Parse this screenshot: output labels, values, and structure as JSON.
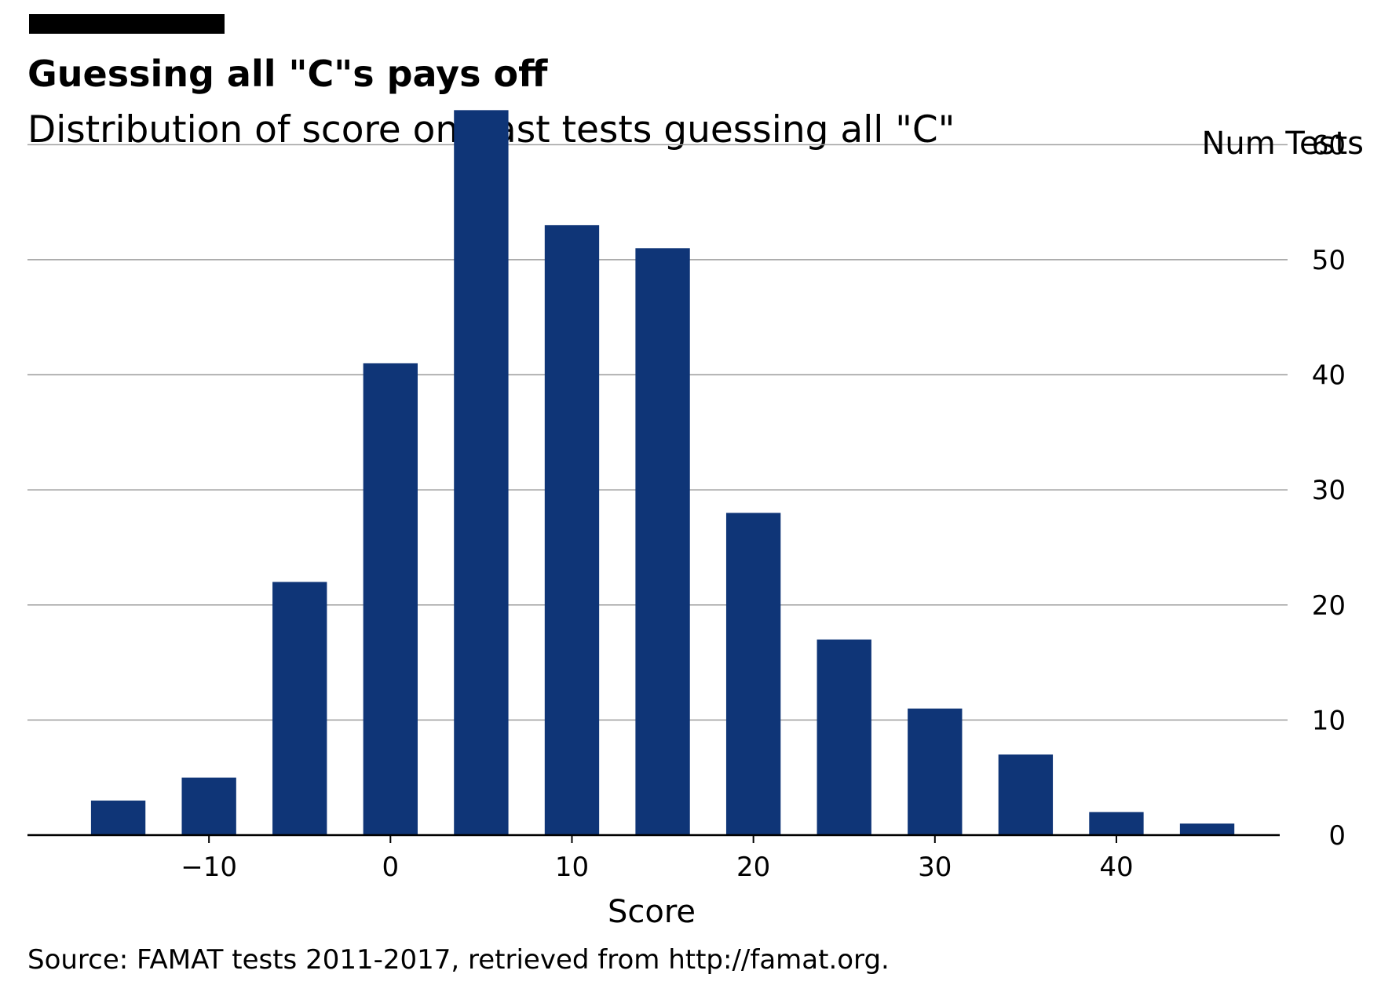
{
  "title": "Guessing all \"C\"s pays off",
  "subtitle": "Distribution of score on past tests guessing all \"C\"",
  "source": "Source: FAMAT tests 2011-2017, retrieved from http://famat.org.",
  "colors": {
    "bar": "#0f3577",
    "grid": "#9e9e9e",
    "axis": "#000000",
    "accent": "#000000"
  },
  "chart_data": {
    "type": "bar",
    "xlabel": "Score",
    "ylabel": "Num Tests",
    "y_axis_side": "right",
    "grid": "horizontal",
    "xlim": [
      -20,
      49
    ],
    "ylim": [
      0,
      62
    ],
    "xticks": [
      -10,
      0,
      10,
      20,
      30,
      40
    ],
    "xtick_labels": [
      "−10",
      "0",
      "10",
      "20",
      "30",
      "40"
    ],
    "yticks": [
      0,
      10,
      20,
      30,
      40,
      50,
      60
    ],
    "bin_width": 5,
    "bar_width": 3,
    "bins": [
      -15,
      -10,
      -5,
      0,
      5,
      10,
      15,
      20,
      25,
      30,
      35,
      40,
      45
    ],
    "values": [
      3,
      5,
      22,
      41,
      63,
      53,
      51,
      28,
      17,
      11,
      7,
      2,
      1
    ]
  }
}
